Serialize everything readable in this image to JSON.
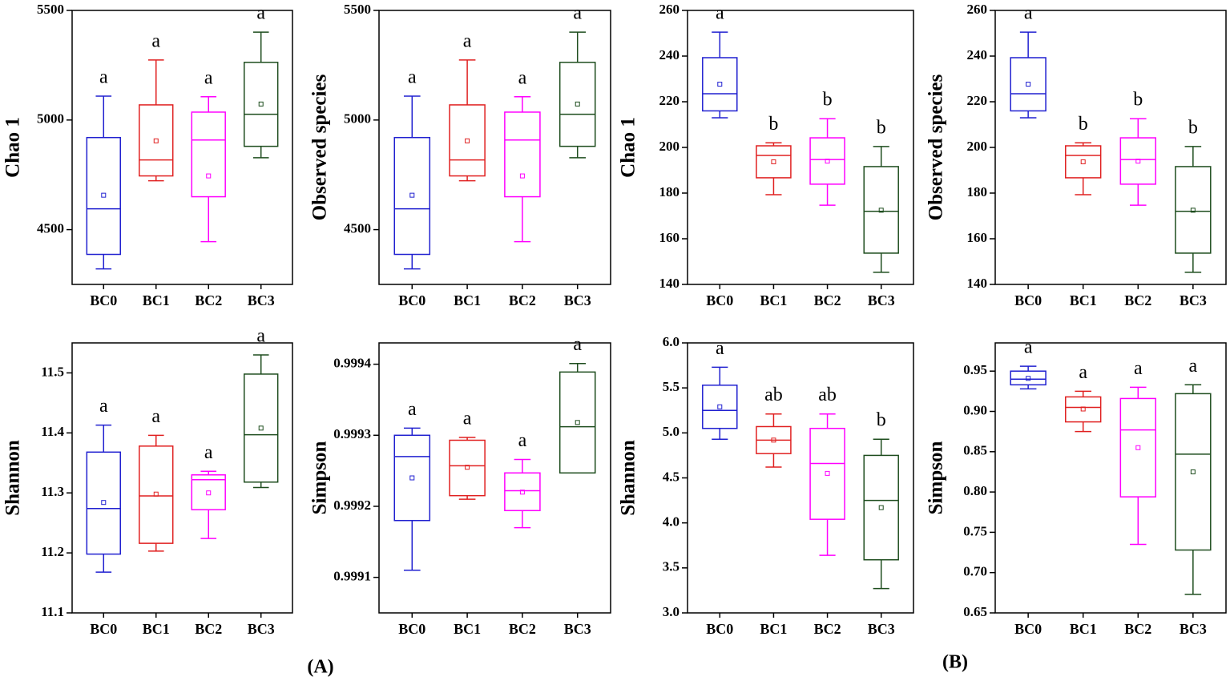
{
  "chart_data": [
    {
      "type": "box",
      "ylabel": "Chao 1",
      "categories": [
        "BC0",
        "BC1",
        "BC2",
        "BC3"
      ],
      "colors": [
        "#2020d0",
        "#e02020",
        "#ff00ff",
        "#1e4d1e"
      ],
      "ylim": [
        4250,
        5500
      ],
      "yticks": [
        4500,
        5000,
        5500
      ],
      "boxes": [
        {
          "whislo": 4321,
          "q1": 4387,
          "med": 4595,
          "q3": 4920,
          "whishi": 5109,
          "mean": 4657,
          "letter": "a"
        },
        {
          "whislo": 4723,
          "q1": 4745,
          "med": 4818,
          "q3": 5069,
          "whishi": 5274,
          "mean": 4905,
          "letter": "a"
        },
        {
          "whislo": 4445,
          "q1": 4650,
          "med": 4909,
          "q3": 5036,
          "whishi": 5106,
          "mean": 4745,
          "letter": "a"
        },
        {
          "whislo": 4828,
          "q1": 4880,
          "med": 5026,
          "q3": 5263,
          "whishi": 5401,
          "mean": 5073,
          "letter": "a"
        }
      ]
    },
    {
      "type": "box",
      "ylabel": "Observed species",
      "categories": [
        "BC0",
        "BC1",
        "BC2",
        "BC3"
      ],
      "colors": [
        "#2020d0",
        "#e02020",
        "#ff00ff",
        "#1e4d1e"
      ],
      "ylim": [
        4250,
        5500
      ],
      "yticks": [
        4500,
        5000,
        5500
      ],
      "boxes": [
        {
          "whislo": 4321,
          "q1": 4387,
          "med": 4595,
          "q3": 4920,
          "whishi": 5109,
          "mean": 4657,
          "letter": "a"
        },
        {
          "whislo": 4723,
          "q1": 4745,
          "med": 4818,
          "q3": 5069,
          "whishi": 5274,
          "mean": 4905,
          "letter": "a"
        },
        {
          "whislo": 4445,
          "q1": 4650,
          "med": 4909,
          "q3": 5036,
          "whishi": 5106,
          "mean": 4745,
          "letter": "a"
        },
        {
          "whislo": 4828,
          "q1": 4880,
          "med": 5026,
          "q3": 5263,
          "whishi": 5401,
          "mean": 5073,
          "letter": "a"
        }
      ]
    },
    {
      "type": "box",
      "ylabel": "Chao 1",
      "categories": [
        "BC0",
        "BC1",
        "BC2",
        "BC3"
      ],
      "colors": [
        "#2020d0",
        "#e02020",
        "#ff00ff",
        "#1e4d1e"
      ],
      "ylim": [
        140,
        260
      ],
      "yticks": [
        140,
        160,
        180,
        200,
        220,
        240,
        260
      ],
      "boxes": [
        {
          "whislo": 213,
          "q1": 216,
          "med": 223.5,
          "q3": 239.3,
          "whishi": 250.5,
          "mean": 227.7,
          "letter": "a"
        },
        {
          "whislo": 179.3,
          "q1": 186.7,
          "med": 196.5,
          "q3": 200.7,
          "whishi": 202,
          "mean": 193.7,
          "letter": "b"
        },
        {
          "whislo": 174.7,
          "q1": 183.9,
          "med": 194.7,
          "q3": 204.2,
          "whishi": 212.6,
          "mean": 194,
          "letter": "b"
        },
        {
          "whislo": 145.3,
          "q1": 153.7,
          "med": 172,
          "q3": 191.6,
          "whishi": 200.4,
          "mean": 172.5,
          "letter": "b"
        }
      ]
    },
    {
      "type": "box",
      "ylabel": "Observed species",
      "categories": [
        "BC0",
        "BC1",
        "BC2",
        "BC3"
      ],
      "colors": [
        "#2020d0",
        "#e02020",
        "#ff00ff",
        "#1e4d1e"
      ],
      "ylim": [
        140,
        260
      ],
      "yticks": [
        140,
        160,
        180,
        200,
        220,
        240,
        260
      ],
      "boxes": [
        {
          "whislo": 213,
          "q1": 216,
          "med": 223.5,
          "q3": 239.3,
          "whishi": 250.5,
          "mean": 227.7,
          "letter": "a"
        },
        {
          "whislo": 179.3,
          "q1": 186.7,
          "med": 196.5,
          "q3": 200.7,
          "whishi": 202,
          "mean": 193.7,
          "letter": "b"
        },
        {
          "whislo": 174.7,
          "q1": 183.9,
          "med": 194.7,
          "q3": 204.2,
          "whishi": 212.6,
          "mean": 194,
          "letter": "b"
        },
        {
          "whislo": 145.3,
          "q1": 153.7,
          "med": 172,
          "q3": 191.6,
          "whishi": 200.4,
          "mean": 172.5,
          "letter": "b"
        }
      ]
    },
    {
      "type": "box",
      "ylabel": "Shannon",
      "categories": [
        "BC0",
        "BC1",
        "BC2",
        "BC3"
      ],
      "colors": [
        "#2020d0",
        "#e02020",
        "#ff00ff",
        "#1e4d1e"
      ],
      "ylim": [
        11.1,
        11.55
      ],
      "yticks": [
        11.1,
        11.2,
        11.3,
        11.4,
        11.5
      ],
      "boxes": [
        {
          "whislo": 11.168,
          "q1": 11.198,
          "med": 11.274,
          "q3": 11.368,
          "whishi": 11.413,
          "mean": 11.284,
          "letter": "a"
        },
        {
          "whislo": 11.203,
          "q1": 11.216,
          "med": 11.295,
          "q3": 11.378,
          "whishi": 11.396,
          "mean": 11.298,
          "letter": "a"
        },
        {
          "whislo": 11.224,
          "q1": 11.272,
          "med": 11.322,
          "q3": 11.33,
          "whishi": 11.336,
          "mean": 11.3,
          "letter": "a"
        },
        {
          "whislo": 11.309,
          "q1": 11.318,
          "med": 11.397,
          "q3": 11.498,
          "whishi": 11.53,
          "mean": 11.408,
          "letter": "a"
        }
      ]
    },
    {
      "type": "box",
      "ylabel": "Simpson",
      "categories": [
        "BC0",
        "BC1",
        "BC2",
        "BC3"
      ],
      "colors": [
        "#2020d0",
        "#e02020",
        "#ff00ff",
        "#1e4d1e"
      ],
      "ylim": [
        0.99905,
        0.99943
      ],
      "yticks": [
        0.9991,
        0.9992,
        0.9993,
        0.9994
      ],
      "boxes": [
        {
          "whislo": 0.99911,
          "q1": 0.99918,
          "med": 0.99927,
          "q3": 0.9993,
          "whishi": 0.99931,
          "mean": 0.99924,
          "letter": "a"
        },
        {
          "whislo": 0.99921,
          "q1": 0.999215,
          "med": 0.999257,
          "q3": 0.999293,
          "whishi": 0.999297,
          "mean": 0.999255,
          "letter": "a"
        },
        {
          "whislo": 0.99917,
          "q1": 0.999194,
          "med": 0.999222,
          "q3": 0.999247,
          "whishi": 0.999266,
          "mean": 0.99922,
          "letter": "a"
        },
        {
          "whislo": 0.999247,
          "q1": 0.999247,
          "med": 0.999312,
          "q3": 0.999389,
          "whishi": 0.999401,
          "mean": 0.999318,
          "letter": "a"
        }
      ]
    },
    {
      "type": "box",
      "ylabel": "Shannon",
      "categories": [
        "BC0",
        "BC1",
        "BC2",
        "BC3"
      ],
      "colors": [
        "#2020d0",
        "#e02020",
        "#ff00ff",
        "#1e4d1e"
      ],
      "ylim": [
        3,
        6
      ],
      "yticks": [
        {
          "value": 3,
          "label": "3.0"
        },
        3.5,
        {
          "value": 4,
          "label": "4.0"
        },
        4.5,
        {
          "value": 5,
          "label": "5.0"
        },
        5.5,
        {
          "value": 6,
          "label": "6.0"
        }
      ],
      "boxes": [
        {
          "whislo": 4.93,
          "q1": 5.05,
          "med": 5.25,
          "q3": 5.53,
          "whishi": 5.73,
          "mean": 5.29,
          "letter": "a"
        },
        {
          "whislo": 4.62,
          "q1": 4.77,
          "med": 4.92,
          "q3": 5.07,
          "whishi": 5.21,
          "mean": 4.92,
          "letter": "ab"
        },
        {
          "whislo": 3.64,
          "q1": 4.04,
          "med": 4.66,
          "q3": 5.05,
          "whishi": 5.21,
          "mean": 4.55,
          "letter": "ab"
        },
        {
          "whislo": 3.27,
          "q1": 3.59,
          "med": 4.25,
          "q3": 4.75,
          "whishi": 4.93,
          "mean": 4.17,
          "letter": "b"
        }
      ]
    },
    {
      "type": "box",
      "ylabel": "Simpson",
      "categories": [
        "BC0",
        "BC1",
        "BC2",
        "BC3"
      ],
      "colors": [
        "#2020d0",
        "#e02020",
        "#ff00ff",
        "#1e4d1e"
      ],
      "ylim": [
        0.65,
        0.985
      ],
      "yticks": [
        0.65,
        {
          "value": 0.7,
          "label": "0.70"
        },
        0.75,
        {
          "value": 0.8,
          "label": "0.80"
        },
        0.85,
        {
          "value": 0.9,
          "label": "0.90"
        },
        0.95
      ],
      "boxes": [
        {
          "whislo": 0.928,
          "q1": 0.933,
          "med": 0.94,
          "q3": 0.95,
          "whishi": 0.956,
          "mean": 0.941,
          "letter": "a"
        },
        {
          "whislo": 0.875,
          "q1": 0.887,
          "med": 0.905,
          "q3": 0.918,
          "whishi": 0.925,
          "mean": 0.903,
          "letter": "a"
        },
        {
          "whislo": 0.735,
          "q1": 0.794,
          "med": 0.877,
          "q3": 0.916,
          "whishi": 0.93,
          "mean": 0.855,
          "letter": "a"
        },
        {
          "whislo": 0.673,
          "q1": 0.728,
          "med": 0.847,
          "q3": 0.922,
          "whishi": 0.933,
          "mean": 0.825,
          "letter": "a"
        }
      ]
    }
  ],
  "figure_labels": [
    "(A)",
    "(B)"
  ]
}
